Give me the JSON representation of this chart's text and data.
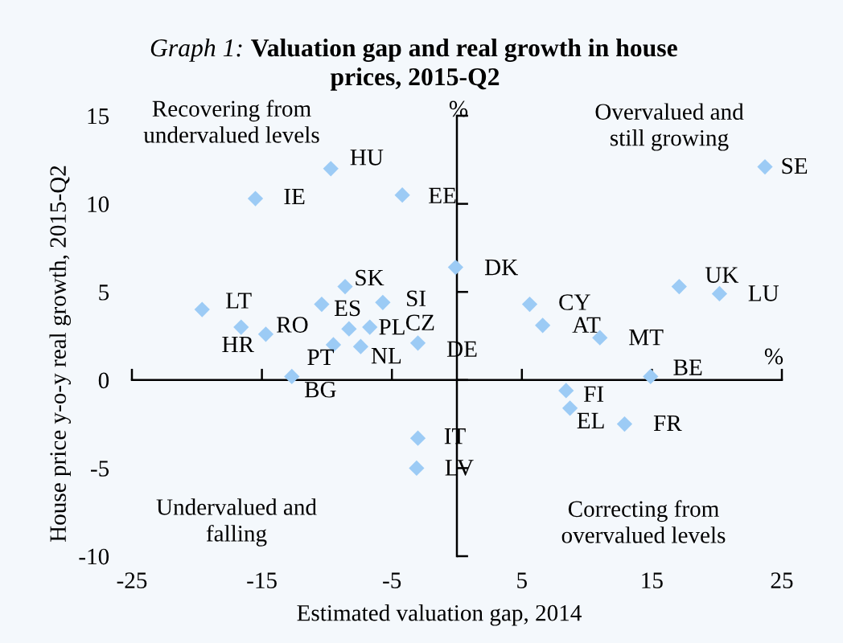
{
  "chart_data": {
    "type": "scatter",
    "title": "Graph 1: Valuation gap and real growth in house\nprices, 2015-Q2",
    "xlabel": "Estimated valuation gap, 2014",
    "ylabel": "House price y-o-y real growth, 2015-Q2",
    "series": [
      {
        "color": "#9ccbf5",
        "x": [
          -19.6,
          -16.6,
          -14.7,
          -15.5,
          -12.7,
          -9.7,
          -10.4,
          -9.5,
          -8.6,
          -8.3,
          -7.4,
          -6.7,
          -5.7,
          -4.2,
          -3.0,
          -3.0,
          -3.1,
          -0.1,
          5.6,
          6.6,
          8.4,
          8.7,
          11.0,
          12.9,
          14.9,
          17.1,
          20.2,
          23.7
        ],
        "values": [
          4.0,
          3.0,
          2.6,
          10.3,
          0.2,
          12.0,
          4.3,
          2.0,
          5.3,
          2.9,
          1.9,
          3.0,
          4.4,
          10.5,
          2.1,
          -3.3,
          -5.0,
          6.4,
          4.3,
          3.1,
          -0.6,
          -1.6,
          2.4,
          -2.5,
          0.2,
          5.3,
          4.9,
          12.1
        ]
      }
    ],
    "marker": "diamond",
    "xlim": [
      -25,
      25
    ],
    "ylim": [
      -10,
      15
    ],
    "xticks": [
      -25,
      -15,
      -5,
      5,
      15,
      25
    ],
    "yticks": [
      -10,
      -5,
      0,
      5,
      10,
      15
    ],
    "annotations": [
      "Recovering from\nundervalued levels",
      "Overvalued and\nstill growing",
      "Undervalued and\nfalling",
      "Correcting from\novervalued levels",
      "%",
      "%",
      {
        "text": "LT",
        "x": -19.6,
        "y": 4.0
      },
      {
        "text": "HR",
        "x": -16.6,
        "y": 3.0
      },
      {
        "text": "RO",
        "x": -14.7,
        "y": 2.6
      },
      {
        "text": "IE",
        "x": -15.5,
        "y": 10.3
      },
      {
        "text": "BG",
        "x": -12.7,
        "y": 0.2
      },
      {
        "text": "HU",
        "x": -9.7,
        "y": 12.0
      },
      {
        "text": "ES",
        "x": -10.4,
        "y": 4.3
      },
      {
        "text": "PT",
        "x": -9.5,
        "y": 2.0
      },
      {
        "text": "SK",
        "x": -8.6,
        "y": 5.3
      },
      {
        "text": "PL",
        "x": -8.3,
        "y": 2.9
      },
      {
        "text": "NL",
        "x": -7.4,
        "y": 1.9
      },
      {
        "text": "CZ",
        "x": -6.7,
        "y": 3.0
      },
      {
        "text": "SI",
        "x": -5.7,
        "y": 4.4
      },
      {
        "text": "EE",
        "x": -4.2,
        "y": 10.5
      },
      {
        "text": "DE",
        "x": -3.0,
        "y": 2.1
      },
      {
        "text": "IT",
        "x": -3.0,
        "y": -3.3
      },
      {
        "text": "LV",
        "x": -3.1,
        "y": -5.0
      },
      {
        "text": "DK",
        "x": -0.1,
        "y": 6.4
      },
      {
        "text": "CY",
        "x": 5.6,
        "y": 4.3
      },
      {
        "text": "AT",
        "x": 6.6,
        "y": 3.1
      },
      {
        "text": "FI",
        "x": 8.4,
        "y": -0.6
      },
      {
        "text": "EL",
        "x": 8.7,
        "y": -1.6
      },
      {
        "text": "MT",
        "x": 11.0,
        "y": 2.4
      },
      {
        "text": "FR",
        "x": 12.9,
        "y": -2.5
      },
      {
        "text": "BE",
        "x": 14.9,
        "y": 0.2
      },
      {
        "text": "UK",
        "x": 17.1,
        "y": 5.3
      },
      {
        "text": "LU",
        "x": 20.2,
        "y": 4.9
      },
      {
        "text": "SE",
        "x": 23.7,
        "y": 12.1
      }
    ]
  }
}
